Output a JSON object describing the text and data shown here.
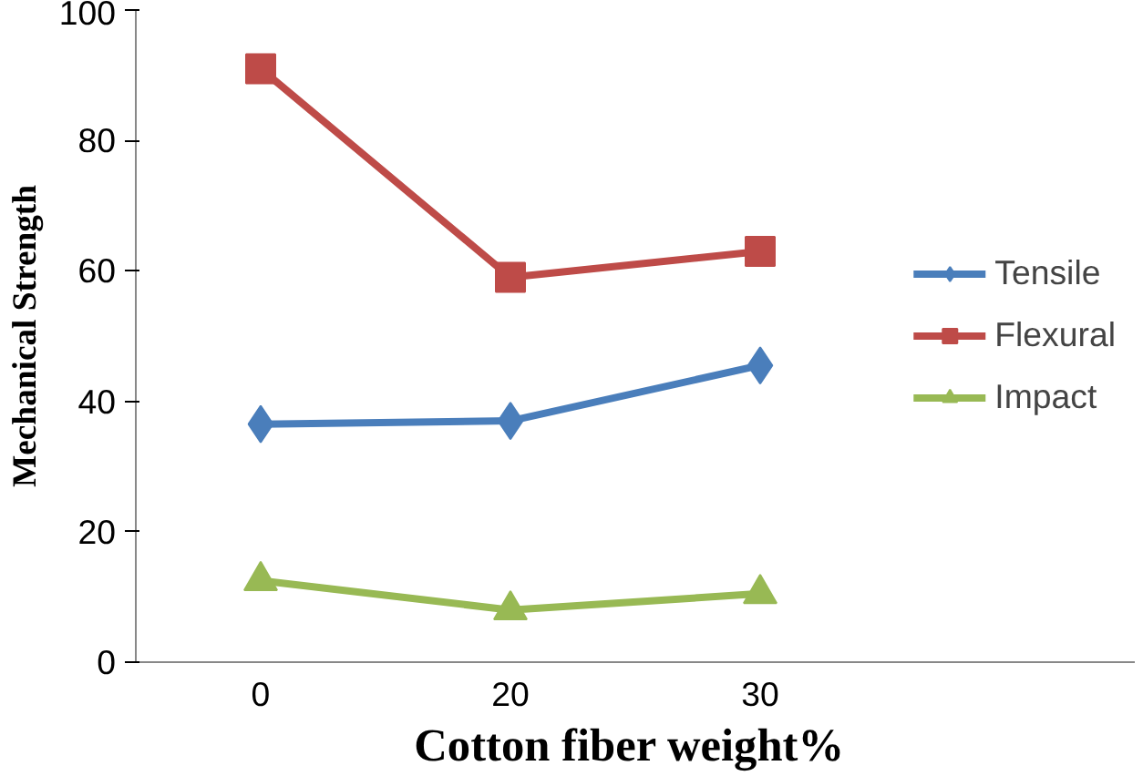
{
  "chart_data": {
    "type": "line",
    "xlabel": "Cotton  fiber weight%",
    "ylabel": "Mechanical Strength",
    "categories": [
      "0",
      "20",
      "30",
      null
    ],
    "series": [
      {
        "name": "Tensile",
        "color": "#4a7ebb",
        "marker": "diamond",
        "values": [
          36.5,
          37,
          45.5,
          null
        ]
      },
      {
        "name": "Flexural",
        "color": "#be4b48",
        "marker": "square",
        "values": [
          91,
          59,
          63,
          null
        ]
      },
      {
        "name": "Impact",
        "color": "#98b954",
        "marker": "triangle",
        "values": [
          12.5,
          8,
          10.5,
          null
        ]
      }
    ],
    "ylim": [
      0,
      100
    ],
    "yticks": [
      0,
      20,
      40,
      60,
      80,
      100
    ],
    "grid": false,
    "legend": "right",
    "line_style": "solid"
  }
}
